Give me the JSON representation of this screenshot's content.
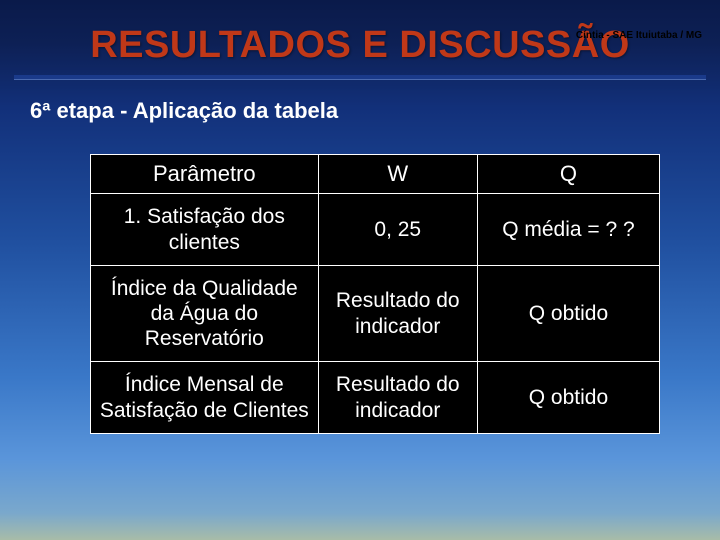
{
  "header": {
    "top_right": "Cíntia - SAE Ituiutaba / MG",
    "title": "RESULTADOS E DISCUSSÃO",
    "subtitle": "6ª etapa - Aplicação da tabela"
  },
  "table": {
    "type": "table",
    "columns": [
      "Parâmetro",
      "W",
      "Q"
    ],
    "rows": [
      [
        "1. Satisfação dos clientes",
        "0, 25",
        "Q média = ? ?"
      ],
      [
        "Índice da Qualidade da Água do Reservatório",
        "Resultado do indicador",
        "Q obtido"
      ],
      [
        "Índice Mensal de Satisfação de Clientes",
        "Resultado do indicador",
        "Q obtido"
      ]
    ],
    "column_widths_pct": [
      40,
      28,
      32
    ],
    "cell_background": "#000000",
    "cell_text_color": "#ffffff",
    "border_color": "#ffffff",
    "font_size_pt": 16
  },
  "style": {
    "title_color": "#c03818",
    "underline_color": "#1a3a8a",
    "background_gradient": [
      "#0a1a4a",
      "#12307a",
      "#3a78c8",
      "#a8bca8"
    ]
  }
}
